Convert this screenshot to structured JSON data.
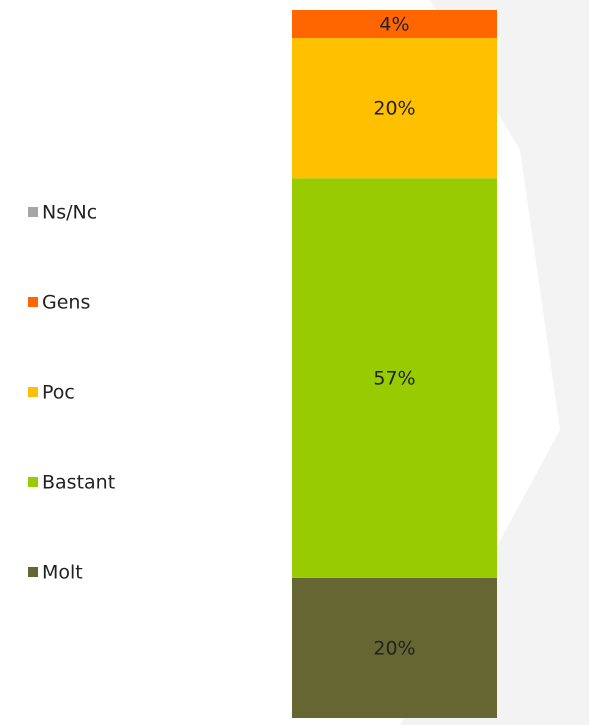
{
  "chart_data": {
    "type": "stacked-bar",
    "series": [
      {
        "name": "Molt",
        "color": "#666633",
        "values": [
          20
        ],
        "value_labels": [
          "20%"
        ]
      },
      {
        "name": "Bastant",
        "color": "#99cc00",
        "values": [
          57
        ],
        "value_labels": [
          "57%"
        ]
      },
      {
        "name": "Poc",
        "color": "#ffc000",
        "values": [
          20
        ],
        "value_labels": [
          "20%"
        ]
      },
      {
        "name": "Gens",
        "color": "#ff6600",
        "values": [
          4
        ],
        "value_labels": [
          "4%"
        ]
      },
      {
        "name": "Ns/Nc",
        "color": "#a6a6a6",
        "values": [
          0
        ],
        "value_labels": [
          null
        ]
      }
    ]
  }
}
